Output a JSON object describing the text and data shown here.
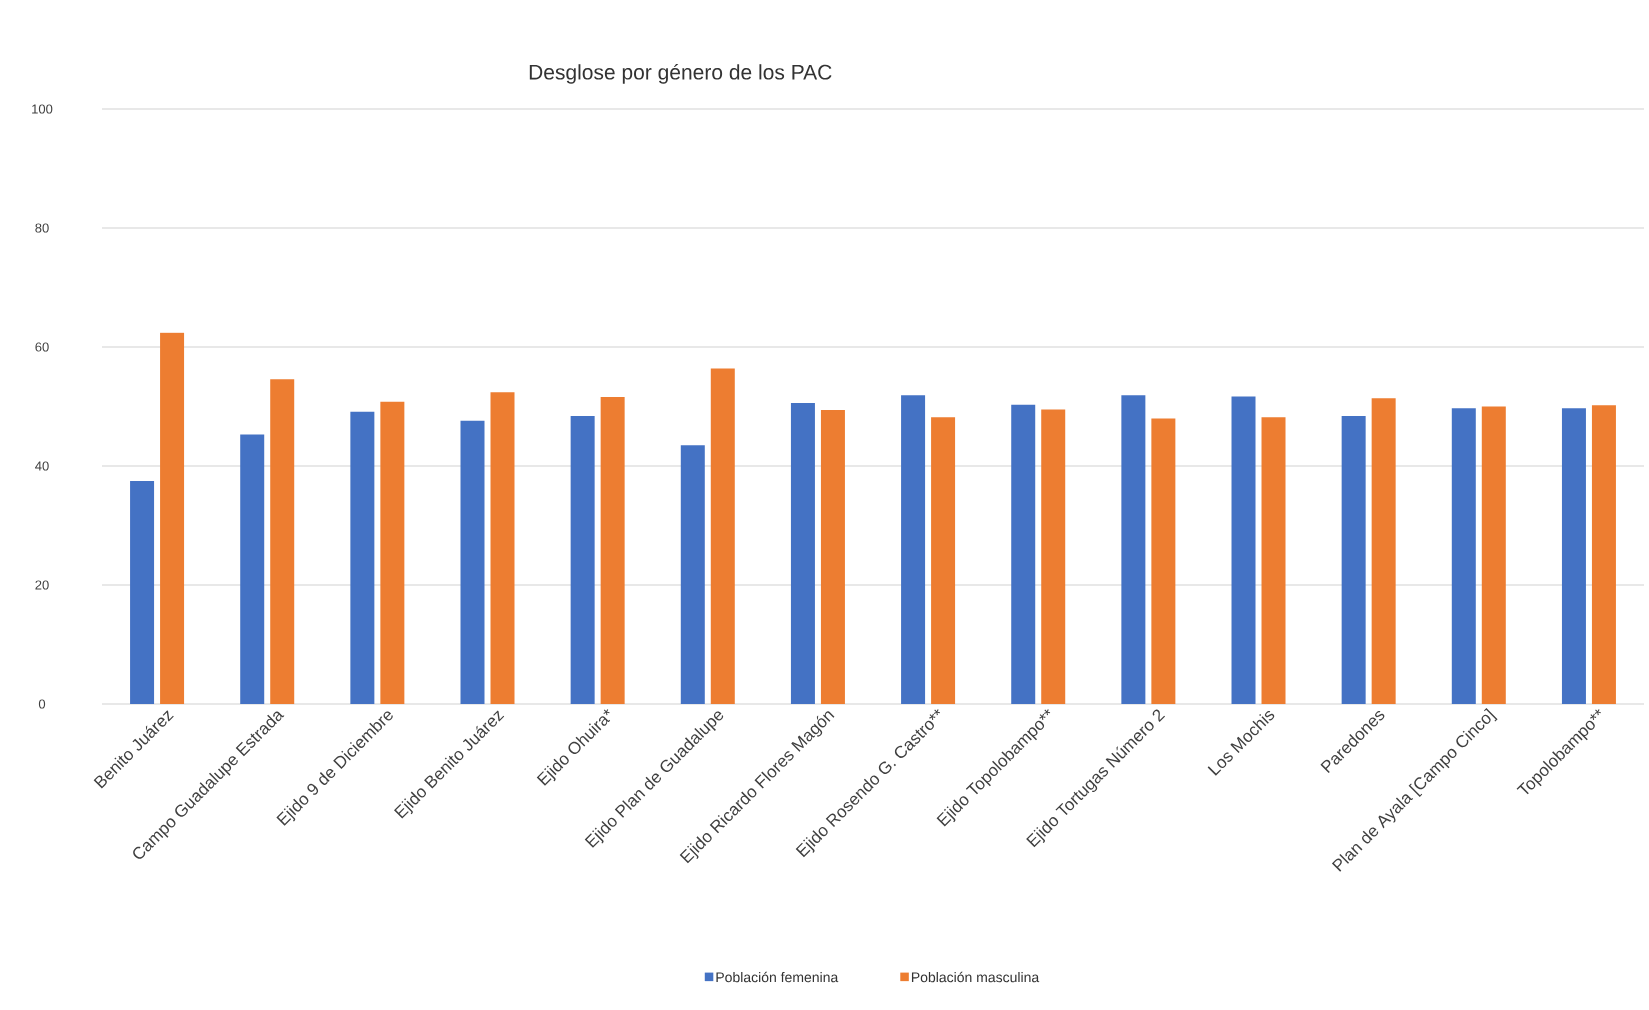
{
  "chart_data": {
    "type": "bar",
    "title": "Desglose por género de los PAC",
    "categories": [
      "Benito Juárez",
      "Campo Guadalupe Estrada",
      "Ejido 9 de Diciembre",
      "Ejido Benito Juárez",
      "Ejido Ohuira*",
      "Ejido Plan de Guadalupe",
      "Ejido Ricardo Flores Magón",
      "Ejido Rosendo G. Castro**",
      "Ejido Topolobampo**",
      "Ejido Tortugas Número 2",
      "Los Mochis",
      "Paredones",
      "Plan de Ayala [Campo Cinco]",
      "Topolobampo**"
    ],
    "series": [
      {
        "name": "Población femenina",
        "color": "#4472c4",
        "values": [
          37.5,
          45.3,
          49.1,
          47.6,
          48.4,
          43.5,
          50.6,
          51.9,
          50.3,
          51.9,
          51.7,
          48.4,
          49.7,
          49.7
        ]
      },
      {
        "name": "Población masculina",
        "color": "#ed7d31",
        "values": [
          62.4,
          54.6,
          50.8,
          52.4,
          51.6,
          56.4,
          49.4,
          48.2,
          49.5,
          48.0,
          48.2,
          51.4,
          50.0,
          50.2
        ]
      }
    ],
    "ylim": [
      0,
      100
    ],
    "yticks": [
      0,
      20,
      40,
      60,
      80,
      100
    ],
    "grid": "y",
    "legend": "bottom"
  }
}
